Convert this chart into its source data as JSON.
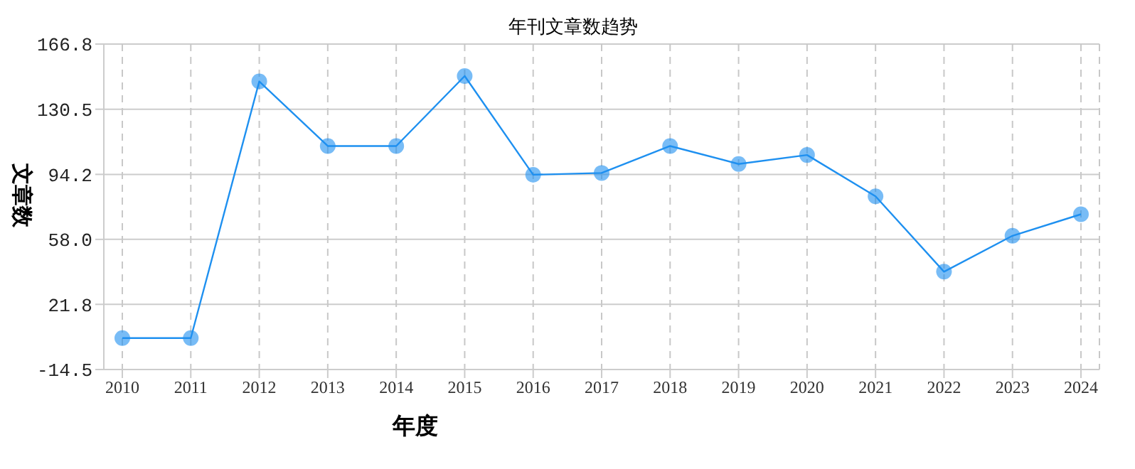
{
  "chart_data": {
    "type": "line",
    "title": "年刊文章数趋势",
    "xlabel": "年度",
    "ylabel": "文章数",
    "categories": [
      "2010",
      "2011",
      "2012",
      "2013",
      "2014",
      "2015",
      "2016",
      "2017",
      "2018",
      "2019",
      "2020",
      "2021",
      "2022",
      "2023",
      "2024"
    ],
    "series": [
      {
        "color": "#1e90f0",
        "values": [
          3,
          3,
          146,
          110,
          110,
          149,
          94,
          95,
          110,
          100,
          105,
          82,
          40,
          60,
          72
        ]
      }
    ],
    "ylim": [
      -14.5,
      166.8
    ],
    "yticks": [
      -14.5,
      21.8,
      {
        "value": 58,
        "label": "58.0"
      },
      94.2,
      130.5,
      166.8
    ],
    "grid": true,
    "marker": "circle",
    "line_style": "solid",
    "legend": false
  }
}
